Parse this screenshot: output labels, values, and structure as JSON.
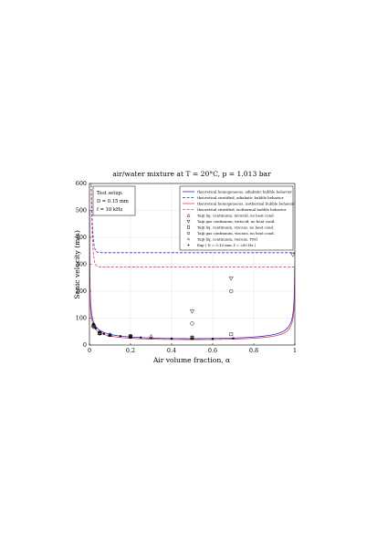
{
  "chart_data": {
    "type": "line",
    "title": "air/water mixture at T = 20°C, p = 1.013 bar",
    "xlabel": "Air volume fraction, α",
    "ylabel": "Sonic velocity (m/s)",
    "xlim": [
      0,
      1
    ],
    "ylim": [
      0,
      600
    ],
    "xticks": [
      "0",
      "0.2",
      "0.4",
      "0.6",
      "0.8",
      "1"
    ],
    "yticks": [
      "0",
      "100",
      "200",
      "300",
      "400",
      "500",
      "600"
    ],
    "grid": true,
    "legend_position": "top-right",
    "test_setup": {
      "heading": "Test setup:",
      "line1": "D = 0.15 mm",
      "line2": "f = 10 kHz"
    },
    "series": [
      {
        "name": "theoretical homogeneous, adiabatic bubble behavior",
        "kind": "curve",
        "model": "homogeneous",
        "gamma": 1.4,
        "color": "#2b2bd0",
        "dash": "solid"
      },
      {
        "name": "theoretical stratified, adiabatic bubble behavior",
        "kind": "curve",
        "model": "stratified",
        "plateau": 343,
        "color": "#2b2bd0",
        "dash": "dashed"
      },
      {
        "name": "theoretical homogeneous, isothermal bubble behavior",
        "kind": "curve",
        "model": "homogeneous",
        "gamma": 1.0,
        "color": "#e0405a",
        "dash": "solid"
      },
      {
        "name": "theoretical stratified, isothermal bubble behavior",
        "kind": "curve",
        "model": "stratified",
        "plateau": 290,
        "color": "#e0405a",
        "dash": "dashed"
      },
      {
        "name": "Taiji liq. continuum, inviscid, no heat cond.",
        "kind": "markers",
        "marker": "triangle-up",
        "points": [
          [
            0.02,
            73
          ],
          [
            0.05,
            45
          ],
          [
            0.1,
            37
          ],
          [
            0.2,
            33
          ],
          [
            0.3,
            32
          ],
          [
            0.5,
            28
          ]
        ]
      },
      {
        "name": "Taiji gas continuum, inviscid, no heat cond.",
        "kind": "markers",
        "marker": "triangle-down",
        "points": [
          [
            0.02,
            67
          ],
          [
            0.05,
            42
          ],
          [
            0.2,
            30
          ],
          [
            0.5,
            125
          ],
          [
            0.69,
            248
          ],
          [
            0.99,
            335
          ]
        ]
      },
      {
        "name": "Taiji liq. continuum, viscous, no heat cond.",
        "kind": "markers",
        "marker": "square",
        "points": [
          [
            0.02,
            70
          ],
          [
            0.05,
            44
          ],
          [
            0.2,
            31
          ],
          [
            0.5,
            27
          ],
          [
            0.69,
            40
          ]
        ]
      },
      {
        "name": "Taiji gas continuum, viscous, no heat cond.",
        "kind": "markers",
        "marker": "circle",
        "points": [
          [
            0.02,
            75
          ],
          [
            0.05,
            46
          ],
          [
            0.1,
            38
          ],
          [
            0.2,
            34
          ],
          [
            0.5,
            80
          ],
          [
            0.69,
            200
          ]
        ]
      },
      {
        "name": "Taiji liq. continuum, viscous, TM1",
        "kind": "markers",
        "marker": "x",
        "points": [
          [
            0.02,
            72
          ],
          [
            0.05,
            44
          ],
          [
            0.2,
            33
          ],
          [
            0.5,
            30
          ]
        ]
      },
      {
        "name": "Exp ( D = 0.10 mm, f = 200 Hz )",
        "kind": "markers",
        "marker": "dot",
        "points": [
          [
            0.02,
            78
          ],
          [
            0.03,
            62
          ],
          [
            0.05,
            48
          ],
          [
            0.07,
            42
          ],
          [
            0.1,
            37
          ],
          [
            0.15,
            33
          ],
          [
            0.2,
            30
          ],
          [
            0.25,
            28
          ],
          [
            0.3,
            26
          ],
          [
            0.4,
            24
          ],
          [
            0.5,
            23
          ],
          [
            0.6,
            23
          ],
          [
            0.7,
            25
          ]
        ]
      }
    ]
  }
}
